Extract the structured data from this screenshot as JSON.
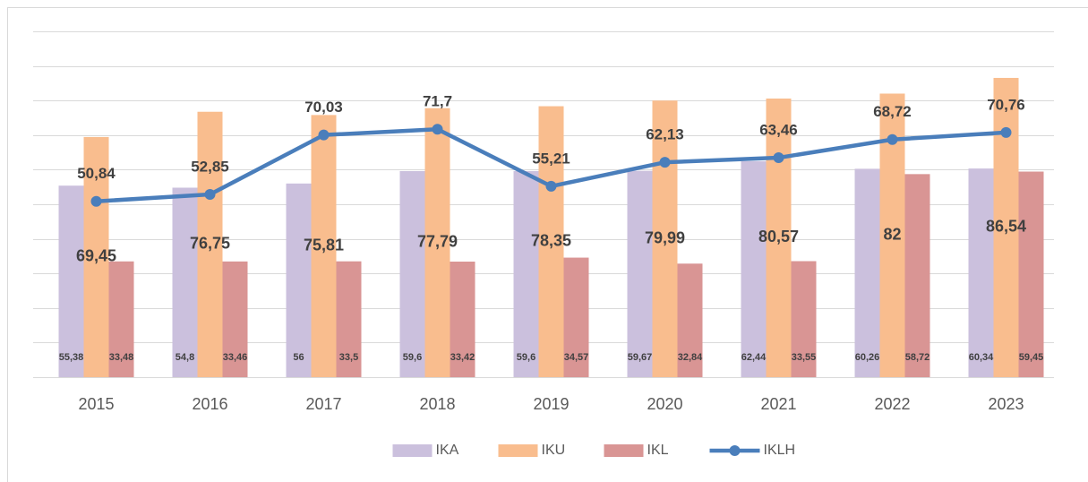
{
  "chart_data": {
    "type": "bar",
    "categories": [
      "2015",
      "2016",
      "2017",
      "2018",
      "2019",
      "2020",
      "2021",
      "2022",
      "2023"
    ],
    "series": [
      {
        "name": "IKA",
        "type": "bar",
        "color": "#cbc0dd",
        "values": [
          55.38,
          54.8,
          56,
          59.6,
          59.6,
          59.67,
          62.44,
          60.26,
          60.34
        ],
        "value_labels": [
          "55,38",
          "54,8",
          "56",
          "59,6",
          "59,6",
          "59,67",
          "62,44",
          "60,26",
          "60,34"
        ]
      },
      {
        "name": "IKU",
        "type": "bar",
        "color": "#f9bd8e",
        "values": [
          69.45,
          76.75,
          75.81,
          77.79,
          78.35,
          79.99,
          80.57,
          82,
          86.54
        ],
        "value_labels": [
          "69,45",
          "76,75",
          "75,81",
          "77,79",
          "78,35",
          "79,99",
          "80,57",
          "82",
          "86,54"
        ]
      },
      {
        "name": "IKL",
        "type": "bar",
        "color": "#d99594",
        "values": [
          33.48,
          33.46,
          33.5,
          33.42,
          34.57,
          32.84,
          33.55,
          58.72,
          59.45
        ],
        "value_labels": [
          "33,48",
          "33,46",
          "33,5",
          "33,42",
          "34,57",
          "32,84",
          "33,55",
          "58,72",
          "59,45"
        ]
      },
      {
        "name": "IKLH",
        "type": "line",
        "color": "#4a7ebb",
        "values": [
          50.84,
          52.85,
          70.03,
          71.7,
          55.21,
          62.13,
          63.46,
          68.72,
          70.76
        ],
        "value_labels": [
          "50,84",
          "52,85",
          "70,03",
          "71,7",
          "55,21",
          "62,13",
          "63,46",
          "68,72",
          "70,76"
        ]
      }
    ],
    "ylim": [
      0,
      100
    ],
    "yticks": [
      0,
      10,
      20,
      30,
      40,
      50,
      60,
      70,
      80,
      90,
      100
    ],
    "grid": true,
    "legend": "bottom"
  }
}
